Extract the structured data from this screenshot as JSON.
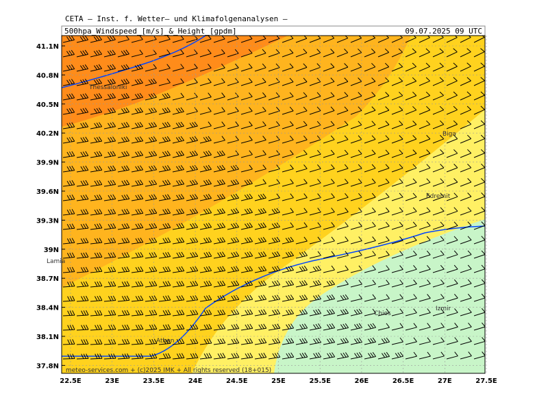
{
  "header": {
    "institute": "CETA – Inst. f. Wetter– und Klimafolgenanalysen –",
    "title": "500hpa_Windspeed_[m/s]_&_Height_[gpdm]",
    "date": "09.07.2025 09 UTC"
  },
  "map": {
    "lat_labels": [
      "41.1N",
      "40.8N",
      "40.5N",
      "40.2N",
      "39.9N",
      "39.6N",
      "39.3N",
      "39N",
      "38.7N",
      "38.4N",
      "38.1N",
      "37.8N"
    ],
    "lon_labels": [
      "22.5E",
      "23E",
      "23.5E",
      "24E",
      "24.5E",
      "25E",
      "25.5E",
      "26E",
      "26.5E",
      "27E",
      "27.5E"
    ],
    "places": [
      "Thessaloniki",
      "Lamia",
      "Athen",
      "Chios",
      "Izmir",
      "Edremit",
      "Biga"
    ]
  },
  "footer": "meteo-services.com + (c)2025 IMK + All rights reserved (18+015)"
}
